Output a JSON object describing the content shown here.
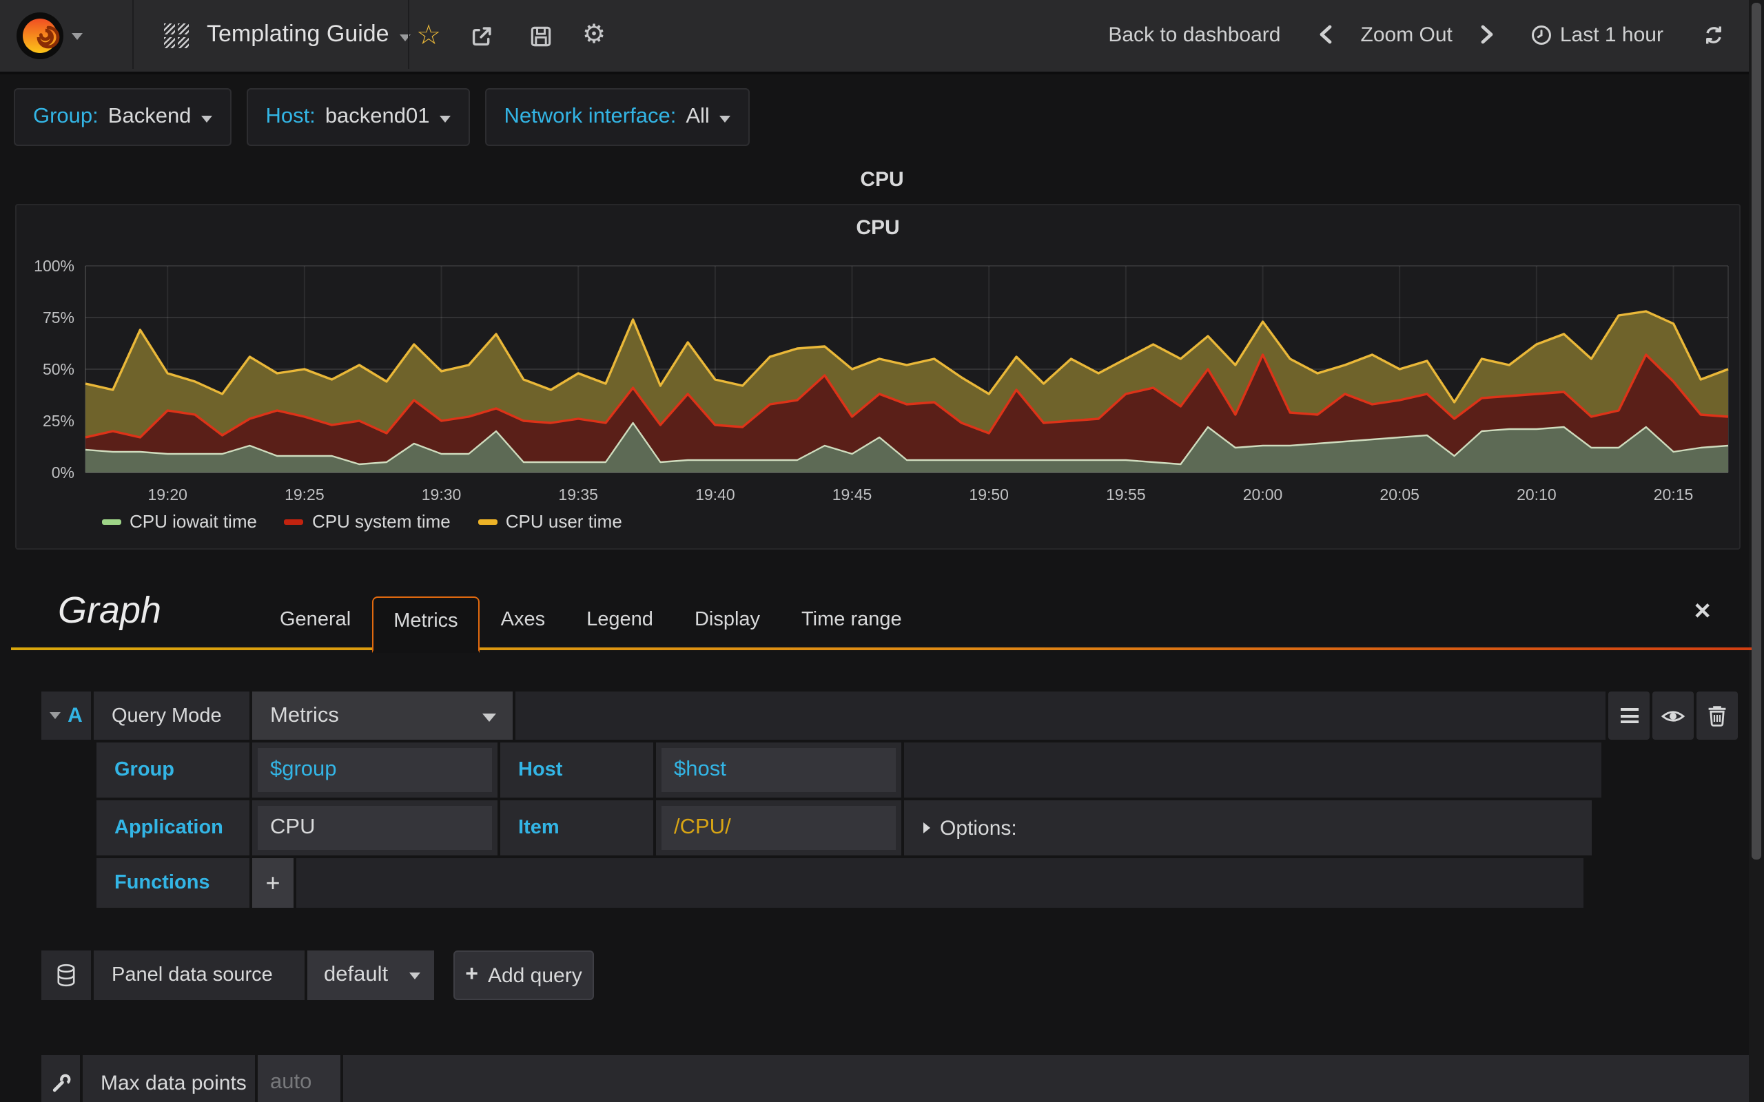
{
  "navbar": {
    "dashboard_title": "Templating Guide",
    "back_to_dashboard": "Back to dashboard",
    "zoom_out": "Zoom Out",
    "time_range": "Last 1 hour"
  },
  "icons": {
    "star": "☆",
    "gear": "⚙",
    "close": "✕",
    "plus": "+"
  },
  "variables": [
    {
      "label": "Group:",
      "value": "Backend"
    },
    {
      "label": "Host:",
      "value": "backend01"
    },
    {
      "label": "Network interface:",
      "value": "All"
    }
  ],
  "panel": {
    "title": "CPU"
  },
  "chart_data": {
    "type": "area",
    "stacked": true,
    "title": "CPU",
    "unit": "%",
    "ylim": [
      0,
      100
    ],
    "y_ticks": [
      "0%",
      "25%",
      "50%",
      "75%",
      "100%"
    ],
    "x_ticks": [
      "19:20",
      "19:25",
      "19:30",
      "19:35",
      "19:40",
      "19:45",
      "19:50",
      "19:55",
      "20:00",
      "20:05",
      "20:10",
      "20:15"
    ],
    "x_start": "19:17",
    "x_end": "20:17",
    "x_step_minutes": 1,
    "grid": true,
    "legend_position": "bottom",
    "series": [
      {
        "name": "CPU iowait time",
        "color": "#9fd588",
        "line": "#cfdcbe",
        "fill": "#5d6a55",
        "values": [
          11,
          10,
          10,
          9,
          9,
          9,
          13,
          8,
          8,
          8,
          4,
          5,
          14,
          9,
          9,
          20,
          5,
          5,
          5,
          5,
          24,
          5,
          6,
          6,
          6,
          6,
          6,
          13,
          9,
          17,
          6,
          6,
          6,
          6,
          6,
          6,
          6,
          6,
          6,
          5,
          4,
          22,
          12,
          13,
          13,
          14,
          15,
          16,
          17,
          18,
          8,
          20,
          21,
          21,
          22,
          12,
          12,
          22,
          10,
          12,
          13
        ]
      },
      {
        "name": "CPU system time",
        "color": "#c2230f",
        "line": "#dd3318",
        "fill": "#5a1f18",
        "values": [
          6,
          10,
          7,
          21,
          19,
          9,
          13,
          22,
          19,
          15,
          21,
          14,
          21,
          16,
          18,
          11,
          20,
          19,
          21,
          19,
          17,
          18,
          32,
          17,
          16,
          27,
          29,
          34,
          18,
          21,
          27,
          28,
          18,
          13,
          34,
          18,
          19,
          20,
          32,
          36,
          28,
          28,
          16,
          44,
          16,
          14,
          23,
          17,
          18,
          20,
          18,
          16,
          16,
          17,
          17,
          15,
          18,
          35,
          34,
          16,
          14
        ]
      },
      {
        "name": "CPU user time",
        "color": "#edb327",
        "line": "#eab839",
        "fill": "#6f632b",
        "values": [
          26,
          20,
          52,
          18,
          16,
          20,
          30,
          18,
          23,
          22,
          27,
          25,
          27,
          24,
          25,
          36,
          20,
          16,
          22,
          19,
          33,
          19,
          25,
          22,
          20,
          23,
          25,
          14,
          23,
          17,
          19,
          21,
          22,
          19,
          16,
          19,
          30,
          22,
          17,
          21,
          23,
          16,
          24,
          16,
          26,
          20,
          14,
          24,
          15,
          16,
          8,
          19,
          15,
          24,
          28,
          28,
          46,
          21,
          28,
          17,
          23
        ]
      }
    ]
  },
  "editor": {
    "heading": "Graph",
    "tabs": [
      {
        "label": "General"
      },
      {
        "label": "Metrics",
        "active": true
      },
      {
        "label": "Axes"
      },
      {
        "label": "Legend"
      },
      {
        "label": "Display"
      },
      {
        "label": "Time range"
      }
    ],
    "query": {
      "ref_id": "A",
      "query_mode_label": "Query Mode",
      "query_mode_value": "Metrics",
      "group_label": "Group",
      "group_value": "$group",
      "host_label": "Host",
      "host_value": "$host",
      "application_label": "Application",
      "application_value": "CPU",
      "item_label": "Item",
      "item_value": "/CPU/",
      "options_label": "Options:",
      "functions_label": "Functions"
    },
    "datasource": {
      "label": "Panel data source",
      "value": "default",
      "add_query_label": "Add query"
    },
    "max_data_points": {
      "label": "Max data points",
      "placeholder": "auto"
    }
  },
  "colors": {
    "accent_cyan": "#33b5e5",
    "tab_active_border": "#e0690f",
    "underline_gradient_start": "#d9a70c",
    "underline_gradient_end": "#d23f12",
    "star": "#eab839",
    "item_value_yellow": "#d9a514"
  }
}
